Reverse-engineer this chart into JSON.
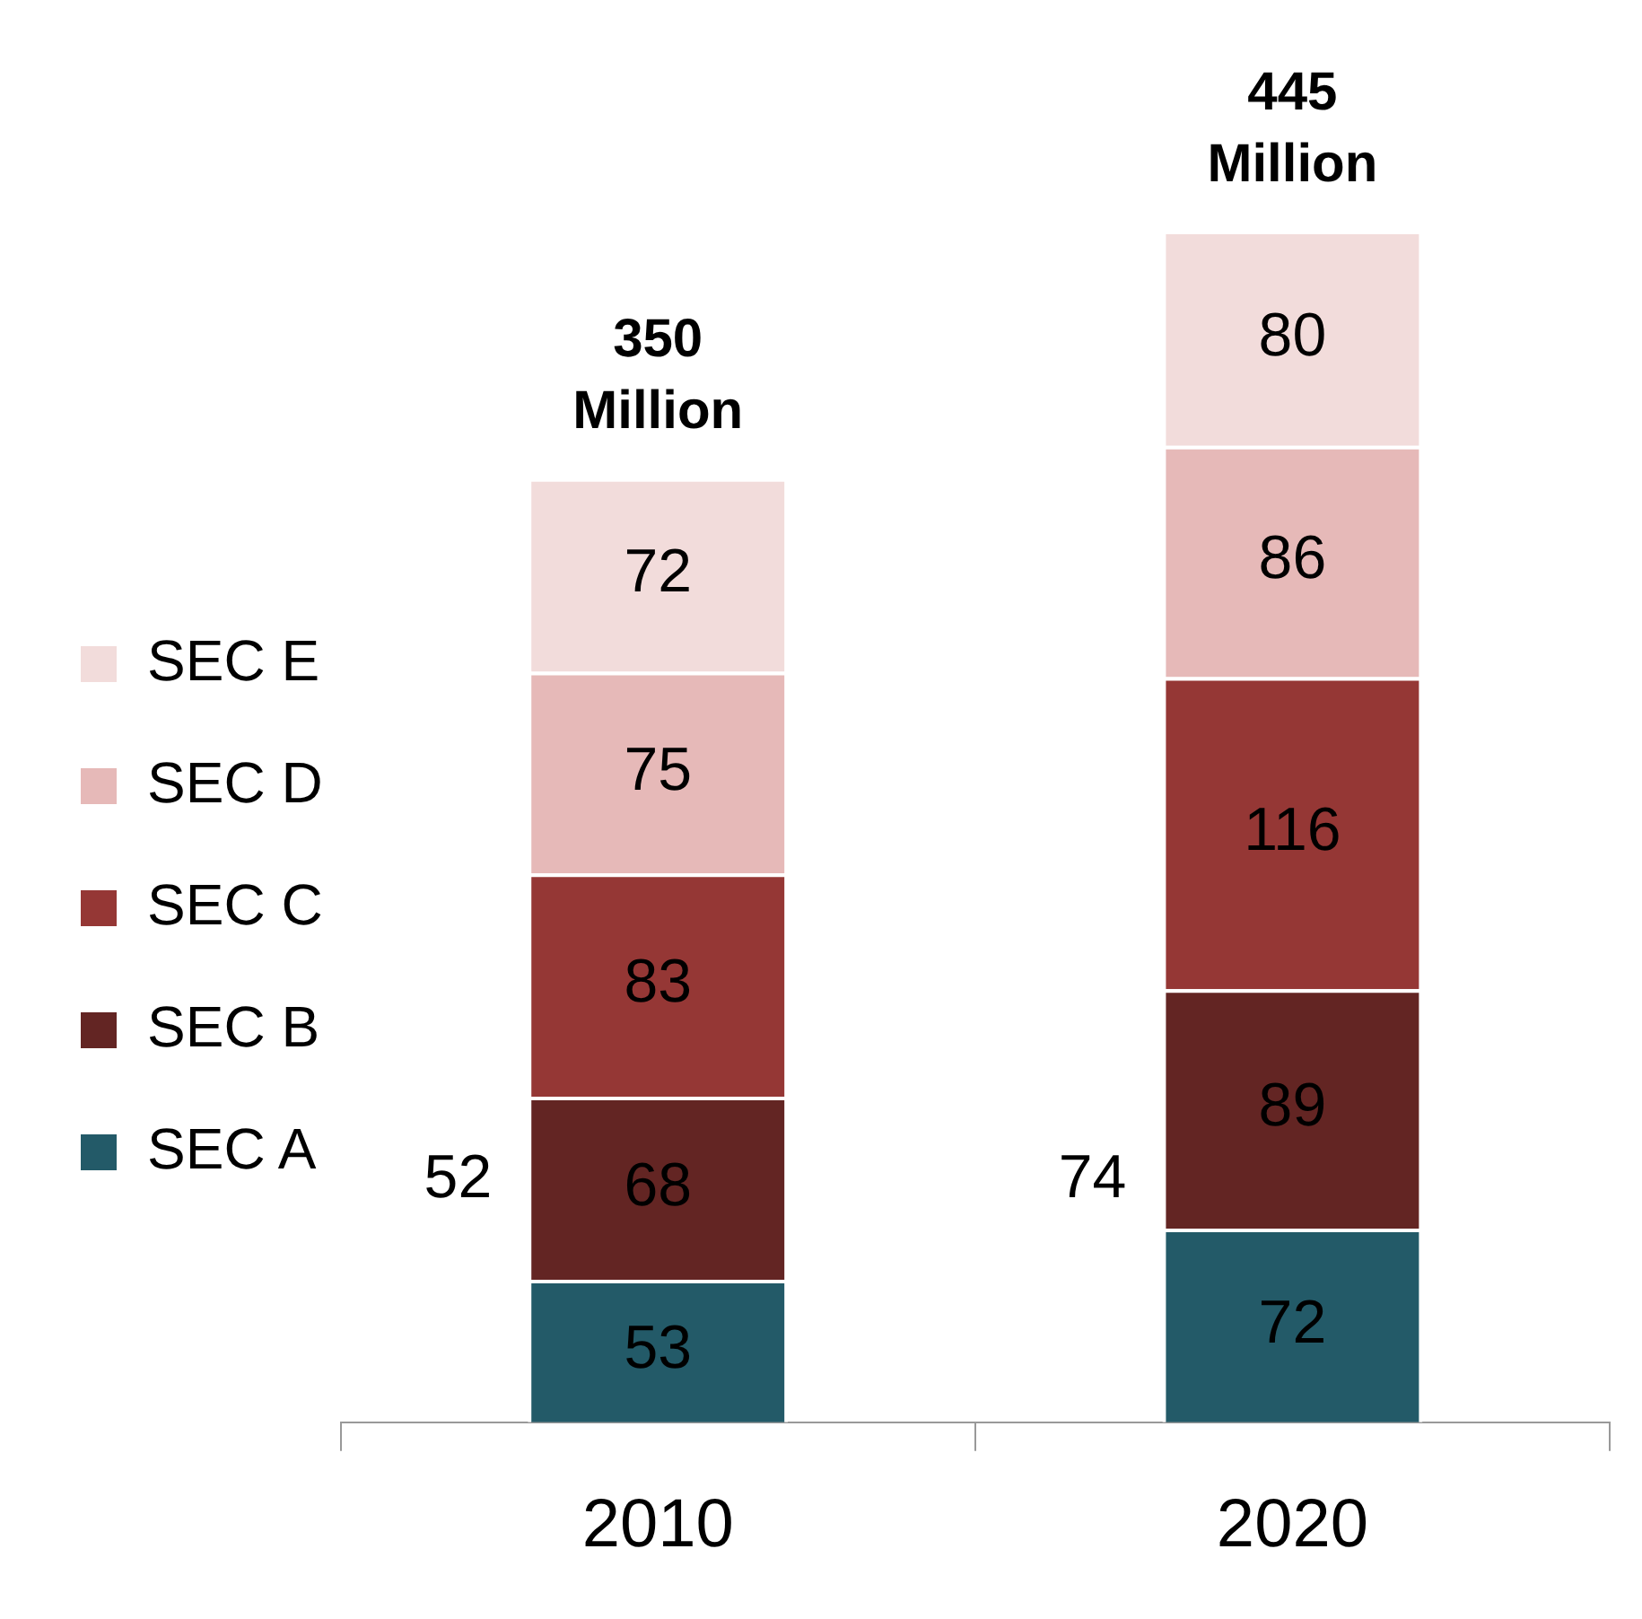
{
  "chart_data": {
    "type": "bar",
    "stacked": true,
    "categories": [
      "2010",
      "2020"
    ],
    "series": [
      {
        "name": "SEC A",
        "color": "#235a68",
        "values": [
          53,
          72
        ]
      },
      {
        "name": "SEC B",
        "color": "#632523",
        "values": [
          68,
          89
        ]
      },
      {
        "name": "SEC C",
        "color": "#953735",
        "values": [
          83,
          116
        ]
      },
      {
        "name": "SEC D",
        "color": "#e6b9b8",
        "values": [
          75,
          86
        ]
      },
      {
        "name": "SEC E",
        "color": "#f2dcdb",
        "values": [
          72,
          80
        ]
      }
    ],
    "data_labels": true,
    "totals": [
      "350 Million",
      "445 Million"
    ],
    "annotations": [
      "52",
      "74"
    ],
    "legend": "left",
    "grid": false
  }
}
